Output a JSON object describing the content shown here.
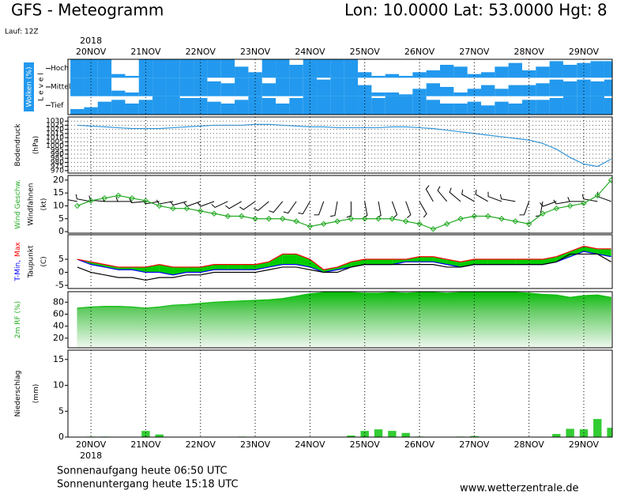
{
  "header": {
    "title": "GFS - Meteogramm",
    "location": "Lon: 10.0000 Lat: 53.0000 Hgt: 8",
    "run": "Lauf: 12Z"
  },
  "chart_data": [
    {
      "type": "clouds",
      "xlabel": "2018",
      "ylabel": [
        "Wolken (%)",
        "L e v e l"
      ],
      "label_color": "#2299ee",
      "xlim": [
        -0.42,
        9.52
      ],
      "xticks": [
        {
          "value": 0,
          "label": "20NOV"
        },
        {
          "value": 1,
          "label": "21NOV"
        },
        {
          "value": 2,
          "label": "22NOV"
        },
        {
          "value": 3,
          "label": "23NOV"
        },
        {
          "value": 4,
          "label": "24NOV"
        },
        {
          "value": 5,
          "label": "25NOV"
        },
        {
          "value": 6,
          "label": "26NOV"
        },
        {
          "value": 7,
          "label": "27NOV"
        },
        {
          "value": 8,
          "label": "28NOV"
        },
        {
          "value": 9,
          "label": "29NOV"
        }
      ],
      "x": [
        -0.25,
        0,
        0.25,
        0.5,
        0.75,
        1,
        1.25,
        1.5,
        1.75,
        2,
        2.25,
        2.5,
        2.75,
        3,
        3.25,
        3.5,
        3.75,
        4,
        4.25,
        4.5,
        4.75,
        5,
        5.25,
        5.5,
        5.75,
        6,
        6.25,
        6.5,
        6.75,
        7,
        7.25,
        7.5,
        7.75,
        8,
        8.25,
        8.5,
        8.75,
        9,
        9.25,
        9.5
      ],
      "series": [
        {
          "name": "Hoch",
          "color": "#2299ee",
          "values": [
            100,
            100,
            100,
            20,
            10,
            100,
            100,
            100,
            100,
            100,
            100,
            100,
            60,
            30,
            100,
            100,
            70,
            100,
            100,
            100,
            100,
            30,
            10,
            20,
            10,
            30,
            40,
            70,
            60,
            20,
            30,
            60,
            80,
            40,
            60,
            90,
            70,
            80,
            90,
            90
          ]
        },
        {
          "name": "Mittel",
          "color": "#2299ee",
          "values": [
            100,
            100,
            100,
            30,
            20,
            100,
            100,
            100,
            100,
            100,
            80,
            70,
            100,
            100,
            70,
            100,
            100,
            100,
            90,
            100,
            100,
            60,
            20,
            20,
            10,
            40,
            70,
            50,
            20,
            40,
            60,
            40,
            60,
            60,
            70,
            90,
            80,
            90,
            80,
            90
          ]
        },
        {
          "name": "Tief",
          "color": "#2299ee",
          "values": [
            30,
            40,
            70,
            80,
            60,
            80,
            100,
            100,
            90,
            90,
            70,
            60,
            80,
            100,
            90,
            60,
            90,
            100,
            100,
            100,
            100,
            100,
            90,
            100,
            100,
            100,
            80,
            60,
            60,
            70,
            50,
            70,
            60,
            80,
            80,
            90,
            100,
            100,
            100,
            90
          ]
        }
      ],
      "grid": "x"
    },
    {
      "type": "line",
      "ylabel": [
        "Bodendruck",
        "(hPa)"
      ],
      "xlim": [
        -0.42,
        9.52
      ],
      "xticks": [
        {
          "value": 0,
          "label": "20NOV"
        },
        {
          "value": 1,
          "label": "21NOV"
        },
        {
          "value": 2,
          "label": "22NOV"
        },
        {
          "value": 3,
          "label": "23NOV"
        },
        {
          "value": 4,
          "label": "24NOV"
        },
        {
          "value": 5,
          "label": "25NOV"
        },
        {
          "value": 6,
          "label": "26NOV"
        },
        {
          "value": 7,
          "label": "27NOV"
        },
        {
          "value": 8,
          "label": "28NOV"
        },
        {
          "value": 9,
          "label": "29NOV"
        }
      ],
      "ylim": [
        967,
        1035
      ],
      "yticks": [
        1030,
        1025,
        1020,
        1015,
        1010,
        1005,
        1000,
        995,
        990,
        985,
        980,
        975,
        970
      ],
      "x": [
        -0.25,
        0,
        0.25,
        0.5,
        0.75,
        1,
        1.25,
        1.5,
        1.75,
        2,
        2.25,
        2.5,
        2.75,
        3,
        3.25,
        3.5,
        3.75,
        4,
        4.25,
        4.5,
        4.75,
        5,
        5.25,
        5.5,
        5.75,
        6,
        6.25,
        6.5,
        6.75,
        7,
        7.25,
        7.5,
        7.75,
        8,
        8.25,
        8.5,
        8.75,
        9,
        9.25,
        9.5
      ],
      "series": [
        {
          "color": "#3399dd",
          "values": [
            1025,
            1024,
            1023,
            1022,
            1021,
            1021,
            1021,
            1022,
            1023,
            1024,
            1025,
            1025,
            1025,
            1026,
            1026,
            1025,
            1024,
            1023,
            1023,
            1022,
            1022,
            1022,
            1022,
            1023,
            1023,
            1022,
            1021,
            1019,
            1017,
            1015,
            1013,
            1011,
            1009,
            1007,
            1003,
            996,
            986,
            978,
            975,
            984
          ]
        }
      ],
      "grid": "both"
    },
    {
      "type": "wind",
      "ylabel": [
        {
          "text": "Wind Geschw.",
          "color": "#22aa22"
        },
        "Windfahnen",
        "(kt)"
      ],
      "xlim": [
        -0.42,
        9.52
      ],
      "xticks": [
        {
          "value": 0,
          "label": "20NOV"
        },
        {
          "value": 1,
          "label": "21NOV"
        },
        {
          "value": 2,
          "label": "22NOV"
        },
        {
          "value": 3,
          "label": "23NOV"
        },
        {
          "value": 4,
          "label": "24NOV"
        },
        {
          "value": 5,
          "label": "25NOV"
        },
        {
          "value": 6,
          "label": "26NOV"
        },
        {
          "value": 7,
          "label": "27NOV"
        },
        {
          "value": 8,
          "label": "28NOV"
        },
        {
          "value": 9,
          "label": "29NOV"
        }
      ],
      "ylim": [
        -0.6,
        21.8
      ],
      "yticks": [
        0,
        5,
        10,
        15,
        20
      ],
      "x": [
        -0.25,
        0,
        0.25,
        0.5,
        0.75,
        1,
        1.25,
        1.5,
        1.75,
        2,
        2.25,
        2.5,
        2.75,
        3,
        3.25,
        3.5,
        3.75,
        4,
        4.25,
        4.5,
        4.75,
        5,
        5.25,
        5.5,
        5.75,
        6,
        6.25,
        6.5,
        6.75,
        7,
        7.25,
        7.5,
        7.75,
        8,
        8.25,
        8.5,
        8.75,
        9,
        9.25,
        9.5
      ],
      "series": [
        {
          "color": "#22aa22",
          "values": [
            10,
            12,
            13,
            14,
            13,
            12,
            10,
            9,
            9,
            8,
            7,
            6,
            6,
            5,
            5,
            5,
            4,
            2,
            3,
            4,
            5,
            5,
            5,
            5,
            4,
            3,
            1,
            3,
            5,
            6,
            6,
            5,
            4,
            3,
            7,
            9,
            10,
            11,
            14,
            20
          ]
        }
      ],
      "direction": [
        280,
        280,
        275,
        270,
        270,
        265,
        260,
        260,
        255,
        250,
        250,
        245,
        240,
        235,
        230,
        220,
        215,
        210,
        200,
        190,
        180,
        170,
        170,
        160,
        160,
        150,
        330,
        320,
        310,
        300,
        300,
        290,
        280,
        200,
        190,
        250,
        260,
        270,
        280,
        290
      ],
      "barb_color": "#000000",
      "grid": "x"
    },
    {
      "type": "temperature",
      "ylabel": [
        [
          {
            "text": "T-Min,",
            "color": "#0000ff"
          },
          {
            "text": "Max",
            "color": "#ff0000"
          }
        ],
        "Taupunkt",
        "(C)"
      ],
      "xlim": [
        -0.42,
        9.52
      ],
      "xticks": [
        {
          "value": 0,
          "label": "20NOV"
        },
        {
          "value": 1,
          "label": "21NOV"
        },
        {
          "value": 2,
          "label": "22NOV"
        },
        {
          "value": 3,
          "label": "23NOV"
        },
        {
          "value": 4,
          "label": "24NOV"
        },
        {
          "value": 5,
          "label": "25NOV"
        },
        {
          "value": 6,
          "label": "26NOV"
        },
        {
          "value": 7,
          "label": "27NOV"
        },
        {
          "value": 8,
          "label": "28NOV"
        },
        {
          "value": 9,
          "label": "29NOV"
        }
      ],
      "ylim": [
        -6.2,
        14.4
      ],
      "yticks": [
        -5,
        0,
        5
      ],
      "x": [
        -0.25,
        0,
        0.25,
        0.5,
        0.75,
        1,
        1.25,
        1.5,
        1.75,
        2,
        2.25,
        2.5,
        2.75,
        3,
        3.25,
        3.5,
        3.75,
        4,
        4.25,
        4.5,
        4.75,
        5,
        5.25,
        5.5,
        5.75,
        6,
        6.25,
        6.5,
        6.75,
        7,
        7.25,
        7.5,
        7.75,
        8,
        8.25,
        8.5,
        8.75,
        9,
        9.25,
        9.5
      ],
      "series": [
        {
          "color": "#0000ff",
          "values": [
            5,
            3,
            2,
            1,
            1,
            0,
            0,
            -1,
            0,
            0,
            1,
            1,
            1,
            1,
            2,
            3,
            3,
            2,
            0,
            1,
            2,
            3,
            3,
            3,
            4,
            4,
            4,
            3,
            2,
            3,
            3,
            3,
            3,
            3,
            3,
            4,
            6,
            8,
            7,
            6
          ]
        },
        {
          "color": "#ff0000",
          "values": [
            5,
            4,
            3,
            2,
            2,
            2,
            3,
            2,
            2,
            2,
            3,
            3,
            3,
            3,
            4,
            7,
            7,
            5,
            1,
            2,
            4,
            5,
            5,
            5,
            5,
            6,
            6,
            5,
            4,
            5,
            5,
            5,
            5,
            5,
            5,
            6,
            8,
            10,
            9,
            9
          ]
        },
        {
          "color": "#000000",
          "values": [
            2,
            0,
            -1,
            -2,
            -2,
            -3,
            -2,
            -2,
            -1,
            -1,
            0,
            0,
            0,
            0,
            1,
            2,
            2,
            1,
            0,
            0,
            2,
            3,
            3,
            3,
            3,
            3,
            3,
            2,
            2,
            3,
            3,
            3,
            3,
            3,
            3,
            4,
            7,
            7,
            7,
            4
          ]
        }
      ],
      "fill_color": "#00cc00",
      "grid": "x"
    },
    {
      "type": "area",
      "ylabel": [
        {
          "text": "2m RF (%)",
          "color": "#22aa22"
        }
      ],
      "xlim": [
        -0.42,
        9.52
      ],
      "xticks": [
        {
          "value": 0,
          "label": "20NOV"
        },
        {
          "value": 1,
          "label": "21NOV"
        },
        {
          "value": 2,
          "label": "22NOV"
        },
        {
          "value": 3,
          "label": "23NOV"
        },
        {
          "value": 4,
          "label": "24NOV"
        },
        {
          "value": 5,
          "label": "25NOV"
        },
        {
          "value": 6,
          "label": "26NOV"
        },
        {
          "value": 7,
          "label": "27NOV"
        },
        {
          "value": 8,
          "label": "28NOV"
        },
        {
          "value": 9,
          "label": "29NOV"
        }
      ],
      "ylim": [
        4,
        97.5
      ],
      "yticks": [
        20,
        40,
        60,
        80
      ],
      "x": [
        -0.25,
        0,
        0.25,
        0.5,
        0.75,
        1,
        1.25,
        1.5,
        1.75,
        2,
        2.25,
        2.5,
        2.75,
        3,
        3.25,
        3.5,
        3.75,
        4,
        4.25,
        4.5,
        4.75,
        5,
        5.25,
        5.5,
        5.75,
        6,
        6.25,
        6.5,
        6.75,
        7,
        7.25,
        7.5,
        7.75,
        8,
        8.25,
        8.5,
        8.75,
        9,
        9.25,
        9.5
      ],
      "series": [
        {
          "color": "#11bb11",
          "values": [
            70,
            72,
            73,
            73,
            72,
            70,
            72,
            75,
            76,
            78,
            80,
            81,
            82,
            83,
            84,
            86,
            90,
            94,
            96,
            96,
            96,
            95,
            95,
            96,
            95,
            96,
            96,
            95,
            96,
            96,
            97,
            96,
            96,
            95,
            93,
            92,
            88,
            91,
            92,
            88
          ]
        }
      ],
      "grid": "x"
    },
    {
      "type": "bar",
      "xlabel": "2018",
      "ylabel": [
        "Niederschlag",
        "(mm)"
      ],
      "xlim": [
        -0.42,
        9.52
      ],
      "xticks": [
        {
          "value": 0,
          "label": "20NOV"
        },
        {
          "value": 1,
          "label": "21NOV"
        },
        {
          "value": 2,
          "label": "22NOV"
        },
        {
          "value": 3,
          "label": "23NOV"
        },
        {
          "value": 4,
          "label": "24NOV"
        },
        {
          "value": 5,
          "label": "25NOV"
        },
        {
          "value": 6,
          "label": "26NOV"
        },
        {
          "value": 7,
          "label": "27NOV"
        },
        {
          "value": 8,
          "label": "28NOV"
        },
        {
          "value": 9,
          "label": "29NOV"
        }
      ],
      "ylim": [
        0,
        16.8
      ],
      "yticks": [
        0,
        5,
        10,
        15
      ],
      "x": [
        -0.25,
        0,
        0.25,
        0.5,
        0.75,
        1,
        1.25,
        1.5,
        1.75,
        2,
        2.25,
        2.5,
        2.75,
        3,
        3.25,
        3.5,
        3.75,
        4,
        4.25,
        4.5,
        4.75,
        5,
        5.25,
        5.5,
        5.75,
        6,
        6.25,
        6.5,
        6.75,
        7,
        7.25,
        7.5,
        7.75,
        8,
        8.25,
        8.5,
        8.75,
        9,
        9.25,
        9.5
      ],
      "series": [
        {
          "color": "#33cc33",
          "values": [
            0,
            0.1,
            0.1,
            0,
            0,
            1.2,
            0.5,
            0,
            0,
            0,
            0,
            0,
            0.1,
            0,
            0,
            0,
            0,
            0,
            0,
            0,
            0.3,
            1.2,
            1.5,
            1.2,
            0.8,
            0.1,
            0,
            0,
            0.1,
            0.2,
            0,
            0,
            0,
            0,
            0,
            0.6,
            1.6,
            1.5,
            3.5,
            1.8
          ]
        }
      ],
      "grid": "x"
    }
  ],
  "footer": {
    "sunrise": "Sonnenaufgang heute 06:50 UTC",
    "sunset": "Sonnenuntergang heute 15:18 UTC",
    "source": "www.wetterzentrale.de"
  }
}
